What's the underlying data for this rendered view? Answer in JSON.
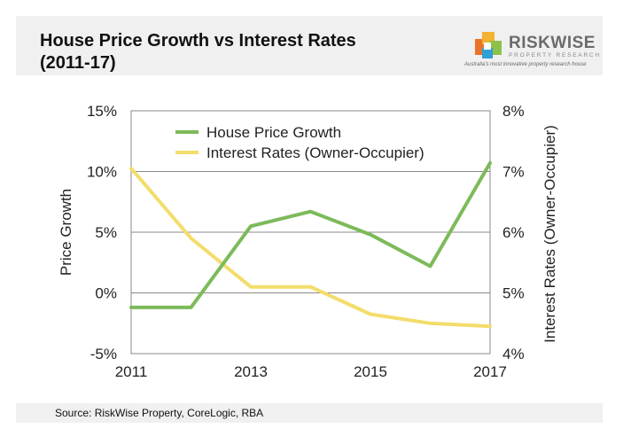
{
  "title_line1": "House Price Growth vs Interest Rates",
  "title_line2": "(2011-17)",
  "logo": {
    "name": "RISKWISE",
    "subtitle": "PROPERTY RESEARCH",
    "tagline": "Australia's most innovative property research house",
    "colors": [
      "#e8742a",
      "#f2b233",
      "#8cc14a",
      "#2f9fd6"
    ]
  },
  "source": "Source: RiskWise Property, CoreLogic, RBA",
  "colors": {
    "house_price": "#7dba5a",
    "interest_rate": "#f3dd6b",
    "grid": "#888888"
  },
  "chart_data": {
    "type": "line",
    "title": "",
    "x": [
      2011,
      2012,
      2013,
      2014,
      2015,
      2016,
      2017
    ],
    "x_ticks": [
      "2011",
      "2013",
      "2015",
      "2017"
    ],
    "xlim": [
      2011,
      2017
    ],
    "ylabel": "Price Growth",
    "ylim": [
      -5,
      15
    ],
    "y_ticks": [
      "-5%",
      "0%",
      "5%",
      "10%",
      "15%"
    ],
    "y2label": "Interest Rates (Owner-Occupier)",
    "y2lim": [
      4,
      8
    ],
    "y2_ticks": [
      "4%",
      "5%",
      "6%",
      "7%",
      "8%"
    ],
    "grid": true,
    "legend": "top-center",
    "series": [
      {
        "name": "House Price Growth",
        "axis": "left",
        "values": [
          -1.2,
          -1.2,
          5.5,
          6.7,
          4.8,
          2.2,
          10.7
        ]
      },
      {
        "name": "Interest Rates (Owner-Occupier)",
        "axis": "right",
        "values": [
          7.05,
          5.9,
          5.1,
          5.1,
          4.65,
          4.5,
          4.45
        ]
      }
    ]
  }
}
